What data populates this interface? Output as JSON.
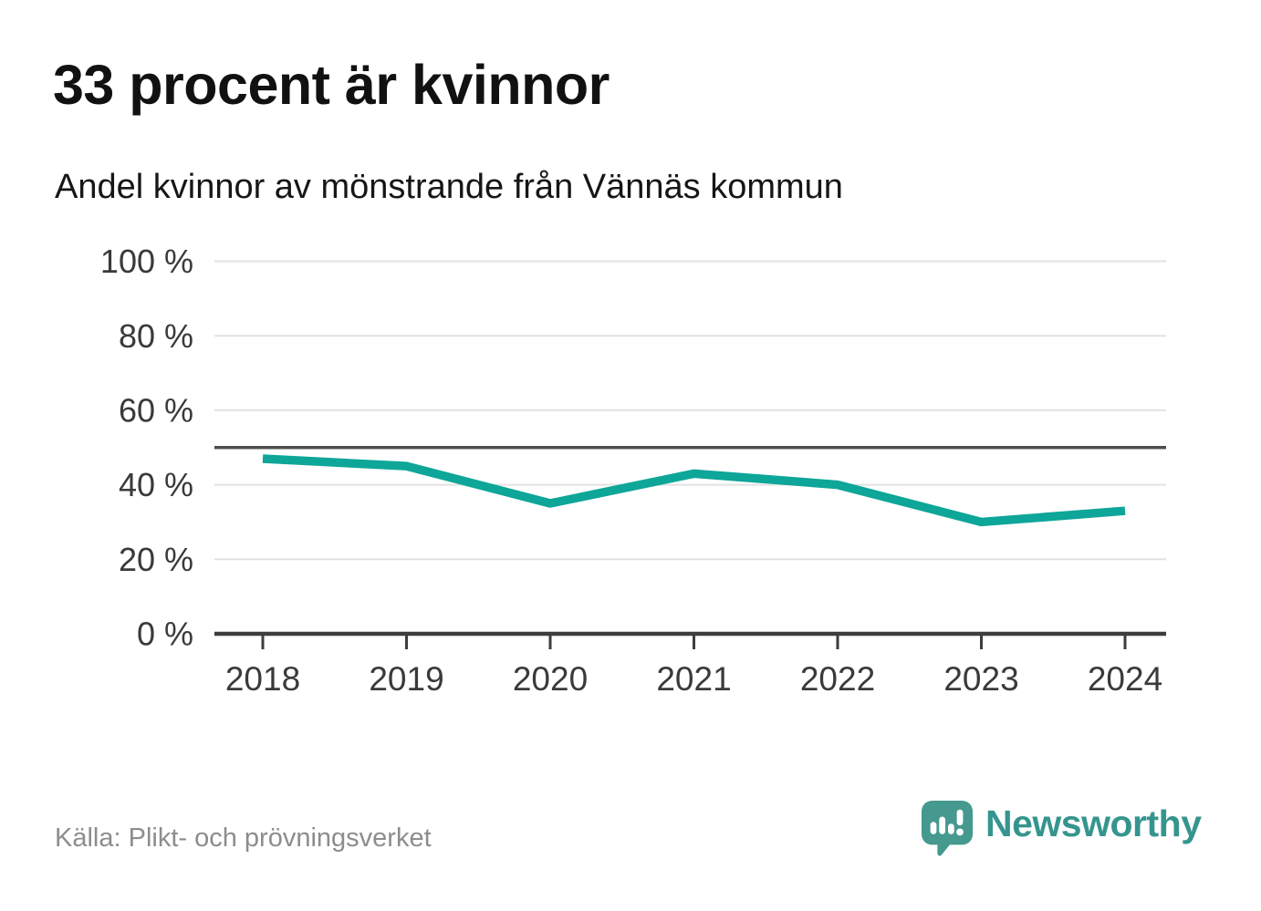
{
  "header": {
    "title": "33 procent är kvinnor",
    "subtitle": "Andel kvinnor av mönstrande från Vännäs kommun"
  },
  "footer": {
    "source": "Källa: Plikt- och prövningsverket",
    "brand": "Newsworthy"
  },
  "colors": {
    "line": "#0da698",
    "reference_line": "#4f4f4f",
    "gridline": "#e2e2e2",
    "axis": "#3d3d3d",
    "tick_label": "#3a3a3a",
    "brand_teal": "#35958e",
    "brand_bubble": "#45998f"
  },
  "chart_data": {
    "type": "line",
    "x": [
      2018,
      2019,
      2020,
      2021,
      2022,
      2023,
      2024
    ],
    "series": [
      {
        "name": "Andel kvinnor av mönstrande",
        "values": [
          47,
          45,
          35,
          43,
          40,
          30,
          33
        ]
      }
    ],
    "unit": "%",
    "ylim": [
      0,
      100
    ],
    "yticks": [
      0,
      20,
      40,
      60,
      80,
      100
    ],
    "ytick_suffix": " %",
    "reference_line": 50,
    "grid": true,
    "legend": "none",
    "title": "33 procent är kvinnor",
    "subtitle": "Andel kvinnor av mönstrande från Vännäs kommun",
    "xlabel": "",
    "ylabel": ""
  }
}
